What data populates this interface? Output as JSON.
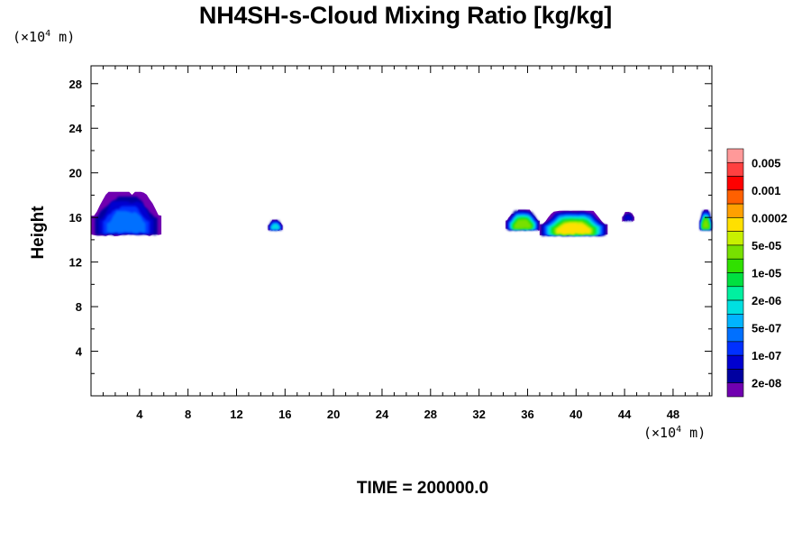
{
  "title": "NH4SH-s-Cloud Mixing Ratio [kg/kg]",
  "y_unit_prefix": "(×10",
  "y_unit_exp": "4",
  "y_unit_suffix": " m)",
  "x_unit_prefix": "(×10",
  "x_unit_exp": "4",
  "x_unit_suffix": " m)",
  "ylabel": "Height",
  "time_label": "TIME = 200000.0",
  "chart_data": {
    "type": "heatmap",
    "title": "NH4SH-s-Cloud Mixing Ratio [kg/kg]",
    "xlabel": "(×10^4 m)",
    "ylabel": "Height",
    "xlim": [
      0,
      51.2
    ],
    "ylim": [
      0,
      29.6
    ],
    "x_ticks": [
      4,
      8,
      12,
      16,
      20,
      24,
      28,
      32,
      36,
      40,
      44,
      48
    ],
    "y_ticks": [
      4,
      8,
      12,
      16,
      20,
      24,
      28
    ],
    "colorbar": {
      "labels": [
        "0.005",
        "0.001",
        "0.0002",
        "5e-05",
        "1e-05",
        "2e-06",
        "5e-07",
        "1e-07",
        "2e-08"
      ],
      "colors": [
        "#ff9999",
        "#ff4040",
        "#ff0000",
        "#ff6000",
        "#ffa000",
        "#ffe000",
        "#c8f000",
        "#78e000",
        "#30e000",
        "#00e040",
        "#00f0a0",
        "#00e0e0",
        "#00b4ff",
        "#0070ff",
        "#0030ff",
        "#0000d0",
        "#0000a0",
        "#7000b0"
      ]
    },
    "cloud_regions": [
      {
        "x_start": 0,
        "x_end": 5.8,
        "y_bottom": 14.4,
        "y_top": 18.3,
        "peak": "5e-07"
      },
      {
        "x_start": 14.6,
        "x_end": 15.8,
        "y_bottom": 14.9,
        "y_top": 15.8,
        "peak": "2e-06"
      },
      {
        "x_start": 34.2,
        "x_end": 37.0,
        "y_bottom": 14.9,
        "y_top": 16.7,
        "peak": "5e-05"
      },
      {
        "x_start": 37.0,
        "x_end": 42.6,
        "y_bottom": 14.4,
        "y_top": 16.6,
        "peak": "0.0002"
      },
      {
        "x_start": 43.8,
        "x_end": 44.8,
        "y_bottom": 15.7,
        "y_top": 16.5,
        "peak": "1e-07"
      },
      {
        "x_start": 50.2,
        "x_end": 51.2,
        "y_bottom": 14.9,
        "y_top": 16.7,
        "peak": "5e-06"
      }
    ]
  }
}
